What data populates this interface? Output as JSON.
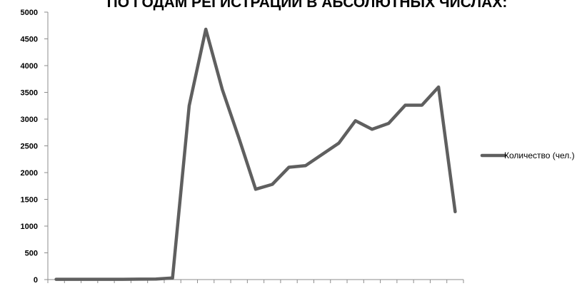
{
  "chart_data": {
    "type": "line",
    "title": "ПО ГОДАМ РЕГИСТРАЦИИ В АБСОЛЮТНЫХ ЧИСЛАХ:",
    "xlabel": "",
    "ylabel": "",
    "ylim": [
      0,
      5000
    ],
    "yticks": [
      "0",
      "500",
      "1000",
      "1500",
      "2000",
      "2500",
      "3000",
      "3500",
      "4000",
      "4500",
      "5000"
    ],
    "grid": false,
    "legend_position": "right",
    "series": [
      {
        "name": "Количество (чел.)",
        "color": "#5f5f5f",
        "values": [
          5,
          5,
          5,
          5,
          6,
          8,
          10,
          30,
          3250,
          4680,
          3550,
          2640,
          1690,
          1780,
          2100,
          2130,
          2340,
          2550,
          2970,
          2810,
          2920,
          3260,
          3260,
          3600,
          1270
        ]
      }
    ]
  }
}
